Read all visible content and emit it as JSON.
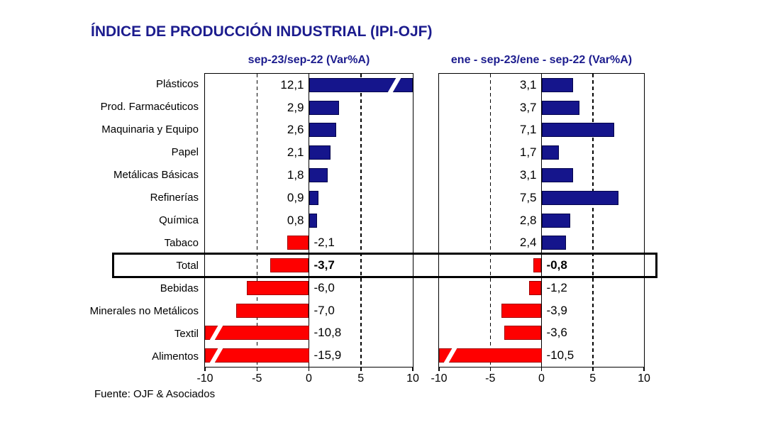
{
  "page": {
    "title": "ÍNDICE DE PRODUCCIÓN INDUSTRIAL (IPI-OJF)",
    "footer": "Fuente: OJF & Asociados"
  },
  "colors": {
    "title_navy": "#1C1C8E",
    "positive_bar": "#15158C",
    "negative_bar": "#FE0000",
    "highlight_border": "#000000"
  },
  "chart_data": {
    "type": "bar",
    "orientation": "horizontal",
    "title": "ÍNDICE DE PRODUCCIÓN INDUSTRIAL (IPI-OJF)",
    "categories": [
      "Plásticos",
      "Prod. Farmacéuticos",
      "Maquinaria y Equipo",
      "Papel",
      "Metálicas Básicas",
      "Refinerías",
      "Química",
      "Tabaco",
      "Total",
      "Bebidas",
      "Minerales no Metálicos",
      "Textil",
      "Alimentos"
    ],
    "series": [
      {
        "name": "sep-23/sep-22 (Var%A)",
        "values": [
          12.1,
          2.9,
          2.6,
          2.1,
          1.8,
          0.9,
          0.8,
          -2.1,
          -3.7,
          -6.0,
          -7.0,
          -10.8,
          -15.9
        ]
      },
      {
        "name": "ene - sep-23/ene - sep-22 (Var%A)",
        "values": [
          3.1,
          3.7,
          7.1,
          1.7,
          3.1,
          7.5,
          2.8,
          2.4,
          -0.8,
          -1.2,
          -3.9,
          -3.6,
          -10.5
        ]
      }
    ],
    "xlim": [
      -10,
      10
    ],
    "x_ticks": [
      -10,
      -5,
      0,
      5,
      10
    ],
    "gridlines_dashed": [
      -5,
      5
    ],
    "grid": "vertical-dashed",
    "legend_position": "none",
    "highlight_category": "Total",
    "value_label_decimal": "comma",
    "clipped_bars_have_break_marks": true,
    "source_note": "Fuente: OJF & Asociados"
  }
}
